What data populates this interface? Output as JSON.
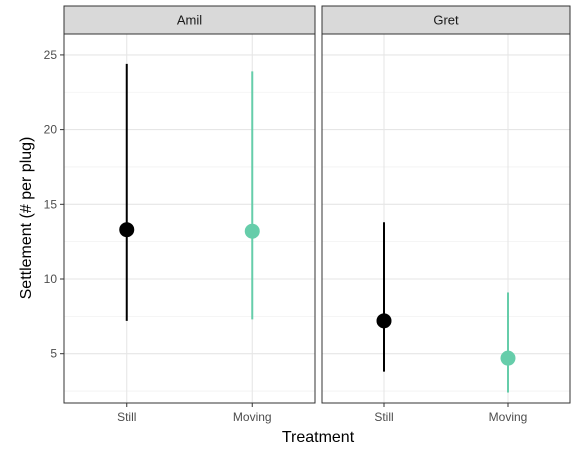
{
  "chart_data": {
    "type": "scatter",
    "subtype": "pointrange-facets",
    "xlabel": "Treatment",
    "ylabel": "Settlement (# per plug)",
    "ylim": [
      1.7,
      26.4
    ],
    "yticks": [
      5,
      10,
      15,
      20,
      25
    ],
    "ytick_labels": [
      "5",
      "10",
      "15",
      "20",
      "25"
    ],
    "categories": [
      "Still",
      "Moving"
    ],
    "grid": true,
    "legend": "none",
    "colors": {
      "Still": "#000000",
      "Moving": "#66cdaa"
    },
    "facets": [
      {
        "label": "Amil",
        "points": [
          {
            "x": "Still",
            "y": 13.3,
            "ymin": 7.2,
            "ymax": 24.4
          },
          {
            "x": "Moving",
            "y": 13.2,
            "ymin": 7.3,
            "ymax": 23.9
          }
        ]
      },
      {
        "label": "Gret",
        "points": [
          {
            "x": "Still",
            "y": 7.2,
            "ymin": 3.8,
            "ymax": 13.8
          },
          {
            "x": "Moving",
            "y": 4.7,
            "ymin": 2.4,
            "ymax": 9.1
          }
        ]
      }
    ]
  }
}
